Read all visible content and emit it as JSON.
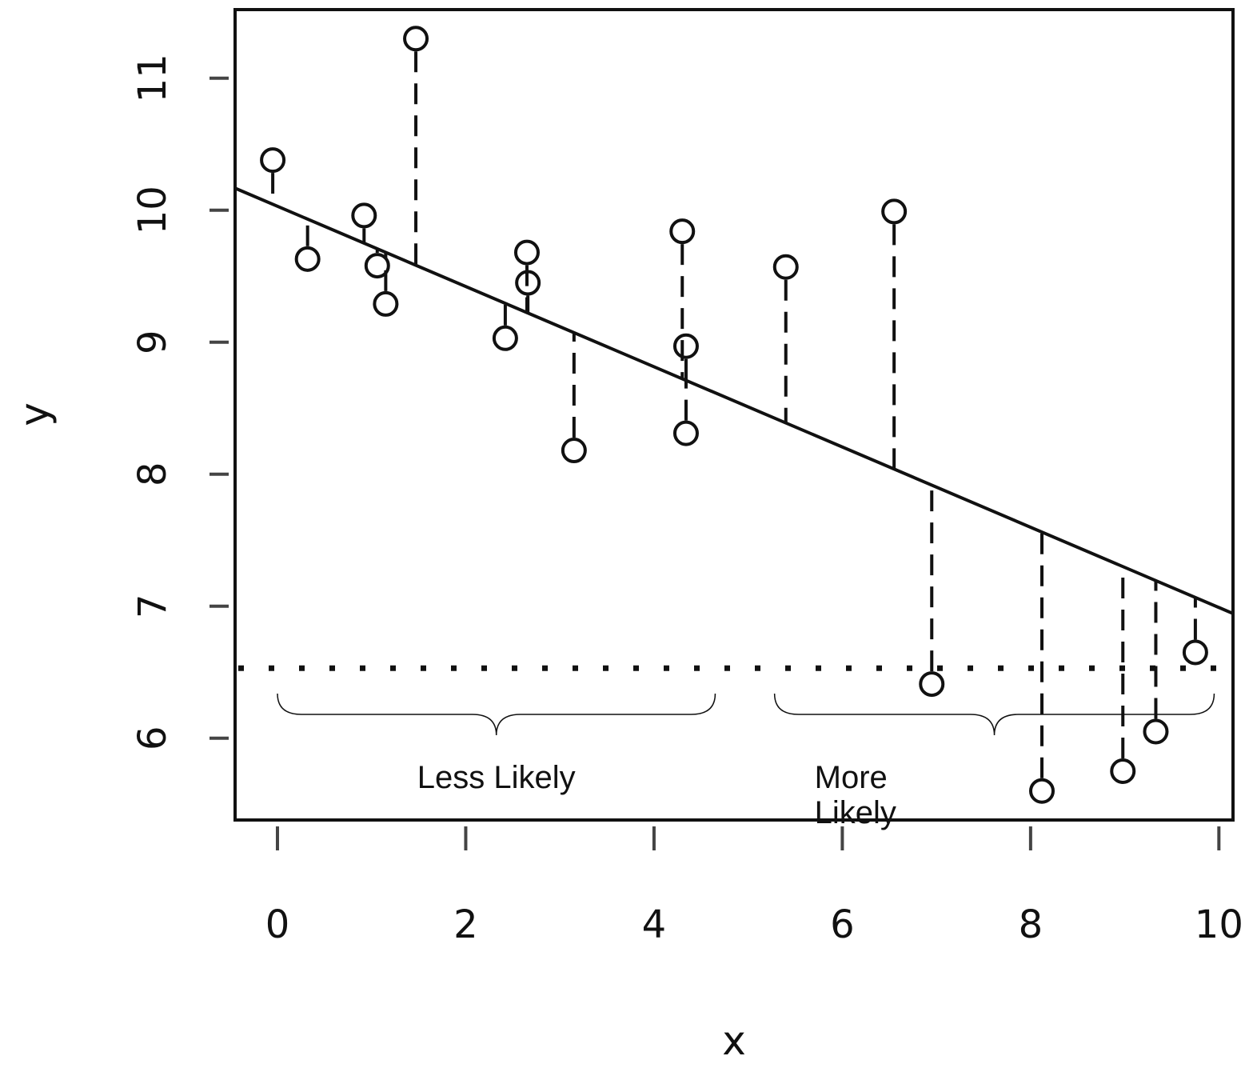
{
  "chart_data": {
    "type": "scatter",
    "xlabel": "x",
    "ylabel": "y",
    "xlim": [
      -0.45,
      10.15
    ],
    "ylim": [
      5.38,
      11.52
    ],
    "x_ticks": [
      0,
      2,
      4,
      6,
      8,
      10
    ],
    "y_ticks": [
      6,
      7,
      8,
      9,
      10,
      11
    ],
    "grid": false,
    "legend": "none",
    "points": [
      {
        "x": -0.05,
        "y": 10.38
      },
      {
        "x": 0.32,
        "y": 9.63
      },
      {
        "x": 0.92,
        "y": 9.96
      },
      {
        "x": 1.06,
        "y": 9.58
      },
      {
        "x": 1.15,
        "y": 9.29
      },
      {
        "x": 1.47,
        "y": 11.3
      },
      {
        "x": 2.42,
        "y": 9.03
      },
      {
        "x": 2.65,
        "y": 9.68
      },
      {
        "x": 2.66,
        "y": 9.45
      },
      {
        "x": 3.15,
        "y": 8.18
      },
      {
        "x": 4.3,
        "y": 9.84
      },
      {
        "x": 4.34,
        "y": 8.97
      },
      {
        "x": 4.34,
        "y": 8.31
      },
      {
        "x": 5.4,
        "y": 9.57
      },
      {
        "x": 6.55,
        "y": 9.99
      },
      {
        "x": 6.95,
        "y": 6.41
      },
      {
        "x": 8.12,
        "y": 5.6
      },
      {
        "x": 8.98,
        "y": 5.75
      },
      {
        "x": 9.33,
        "y": 6.05
      },
      {
        "x": 9.75,
        "y": 6.65
      }
    ],
    "regression_line": {
      "intercept": 10.03,
      "slope": -0.304
    },
    "residual_lines": "dashed",
    "threshold": {
      "y": 6.53,
      "style": "dotted"
    },
    "annotations": [
      {
        "text": "Less Likely",
        "x_from": 0.0,
        "x_to": 4.65,
        "y": 6.18
      },
      {
        "text": "More\nLikely",
        "x_from": 5.28,
        "x_to": 9.95,
        "y": 6.18
      }
    ]
  }
}
